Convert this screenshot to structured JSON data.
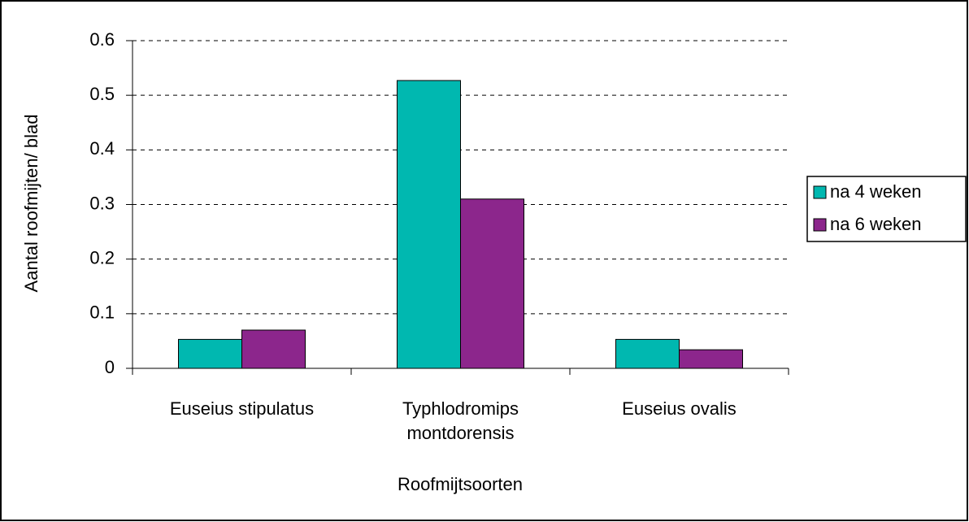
{
  "chart_data": {
    "type": "bar",
    "categories": [
      "Euseius stipulatus",
      "Typhlodromips montdorensis",
      "Euseius ovalis"
    ],
    "series": [
      {
        "name": "na 4 weken",
        "color": "#00b8b0",
        "values": [
          0.053,
          0.527,
          0.053
        ]
      },
      {
        "name": "na 6 weken",
        "color": "#8c268c",
        "values": [
          0.07,
          0.31,
          0.034
        ]
      }
    ],
    "ylim": [
      0,
      0.6
    ],
    "yticks": [
      0,
      0.1,
      0.2,
      0.3,
      0.4,
      0.5,
      0.6
    ],
    "grid": true,
    "y_label": "Aantal roofmijten/ blad",
    "x_label": "Roofmijtsoorten",
    "legend": "right"
  }
}
